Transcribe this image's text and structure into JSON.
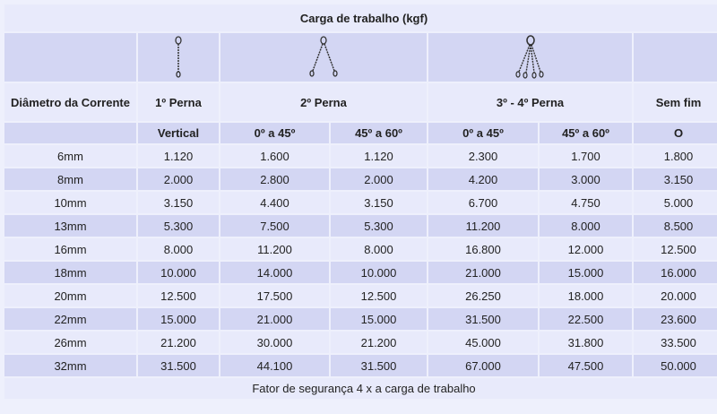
{
  "title": "Carga de trabalho (kgf)",
  "icons": [
    "single-leg-chain-icon",
    "two-leg-chain-icon",
    "four-leg-chain-icon"
  ],
  "headers": {
    "diameter": "Diâmetro da Corrente",
    "leg1": "1º Perna",
    "leg2": "2º Perna",
    "leg34": "3º - 4º Perna",
    "endless": "Sem fim"
  },
  "subheaders": [
    "Vertical",
    "0º a 45º",
    "45º a 60º",
    "0º a 45º",
    "45º a 60º",
    "O"
  ],
  "rows": [
    [
      "6mm",
      "1.120",
      "1.600",
      "1.120",
      "2.300",
      "1.700",
      "1.800"
    ],
    [
      "8mm",
      "2.000",
      "2.800",
      "2.000",
      "4.200",
      "3.000",
      "3.150"
    ],
    [
      "10mm",
      "3.150",
      "4.400",
      "3.150",
      "6.700",
      "4.750",
      "5.000"
    ],
    [
      "13mm",
      "5.300",
      "7.500",
      "5.300",
      "11.200",
      "8.000",
      "8.500"
    ],
    [
      "16mm",
      "8.000",
      "11.200",
      "8.000",
      "16.800",
      "12.000",
      "12.500"
    ],
    [
      "18mm",
      "10.000",
      "14.000",
      "10.000",
      "21.000",
      "15.000",
      "16.000"
    ],
    [
      "20mm",
      "12.500",
      "17.500",
      "12.500",
      "26.250",
      "18.000",
      "20.000"
    ],
    [
      "22mm",
      "15.000",
      "21.000",
      "15.000",
      "31.500",
      "22.500",
      "23.600"
    ],
    [
      "26mm",
      "21.200",
      "30.000",
      "21.200",
      "45.000",
      "31.800",
      "33.500"
    ],
    [
      "32mm",
      "31.500",
      "44.100",
      "31.500",
      "67.000",
      "47.500",
      "50.000"
    ]
  ],
  "footer": "Fator de segurança 4 x a carga de trabalho",
  "colors": {
    "light_cell": "#e8eafb",
    "dark_cell": "#d3d6f3",
    "background": "#eef0fc"
  }
}
